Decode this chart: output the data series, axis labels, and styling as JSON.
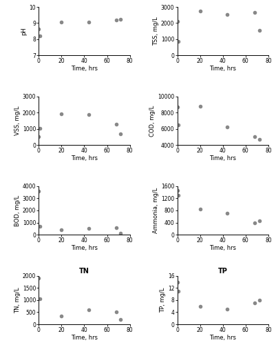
{
  "pH": {
    "x": [
      0,
      1,
      20,
      44,
      68,
      72
    ],
    "y": [
      8.65,
      8.2,
      9.05,
      9.05,
      9.2,
      9.25
    ],
    "ylabel": "pH",
    "ylim": [
      7,
      10
    ],
    "yticks": [
      7,
      8,
      9,
      10
    ]
  },
  "TSS": {
    "x": [
      0,
      1,
      20,
      44,
      68,
      72
    ],
    "y": [
      2100,
      850,
      2750,
      2550,
      2650,
      1550
    ],
    "ylabel": "TSS, mg/L",
    "ylim": [
      0,
      3000
    ],
    "yticks": [
      0,
      1000,
      2000,
      3000
    ]
  },
  "VSS": {
    "x": [
      0,
      1,
      20,
      44,
      68,
      72
    ],
    "y": [
      500,
      1050,
      1950,
      1900,
      1300,
      700
    ],
    "ylabel": "VSS, mg/L",
    "ylim": [
      0,
      3000
    ],
    "yticks": [
      0,
      1000,
      2000,
      3000
    ]
  },
  "COD": {
    "x": [
      0,
      1,
      20,
      44,
      68,
      72
    ],
    "y": [
      8700,
      6500,
      8800,
      6200,
      5000,
      4700
    ],
    "ylabel": "COD, mg/L",
    "ylim": [
      4000,
      10000
    ],
    "yticks": [
      4000,
      6000,
      8000,
      10000
    ]
  },
  "BOD": {
    "x": [
      0,
      1,
      20,
      44,
      68,
      72
    ],
    "y": [
      3600,
      700,
      400,
      500,
      600,
      100
    ],
    "ylabel": "BOD, mg/L",
    "ylim": [
      0,
      4000
    ],
    "yticks": [
      0,
      1000,
      2000,
      3000,
      4000
    ]
  },
  "Ammonia": {
    "x": [
      0,
      1,
      20,
      44,
      68,
      72
    ],
    "y": [
      1450,
      1300,
      850,
      700,
      400,
      450
    ],
    "ylabel": "Ammonia, mg/L",
    "ylim": [
      0,
      1600
    ],
    "yticks": [
      0,
      400,
      800,
      1200,
      1600
    ]
  },
  "TN": {
    "x": [
      0,
      1,
      20,
      44,
      68,
      72
    ],
    "y": [
      1900,
      1050,
      350,
      600,
      500,
      200
    ],
    "ylabel": "TN, mg/L",
    "ylim": [
      0,
      2000
    ],
    "yticks": [
      0,
      500,
      1000,
      1500,
      2000
    ],
    "title": "TN"
  },
  "TP": {
    "x": [
      0,
      1,
      20,
      44,
      68,
      72
    ],
    "y": [
      14,
      11,
      6,
      5,
      7,
      8
    ],
    "ylabel": "TP, mg/L",
    "ylim": [
      0,
      16
    ],
    "yticks": [
      0,
      4,
      8,
      12,
      16
    ],
    "title": "TP"
  },
  "xlabel": "Time, hrs",
  "xlim": [
    0,
    80
  ],
  "xticks": [
    0,
    20,
    40,
    60,
    80
  ],
  "marker": "o",
  "markersize": 3,
  "color": "#888888",
  "figsize": [
    4.02,
    5.0
  ],
  "dpi": 100
}
